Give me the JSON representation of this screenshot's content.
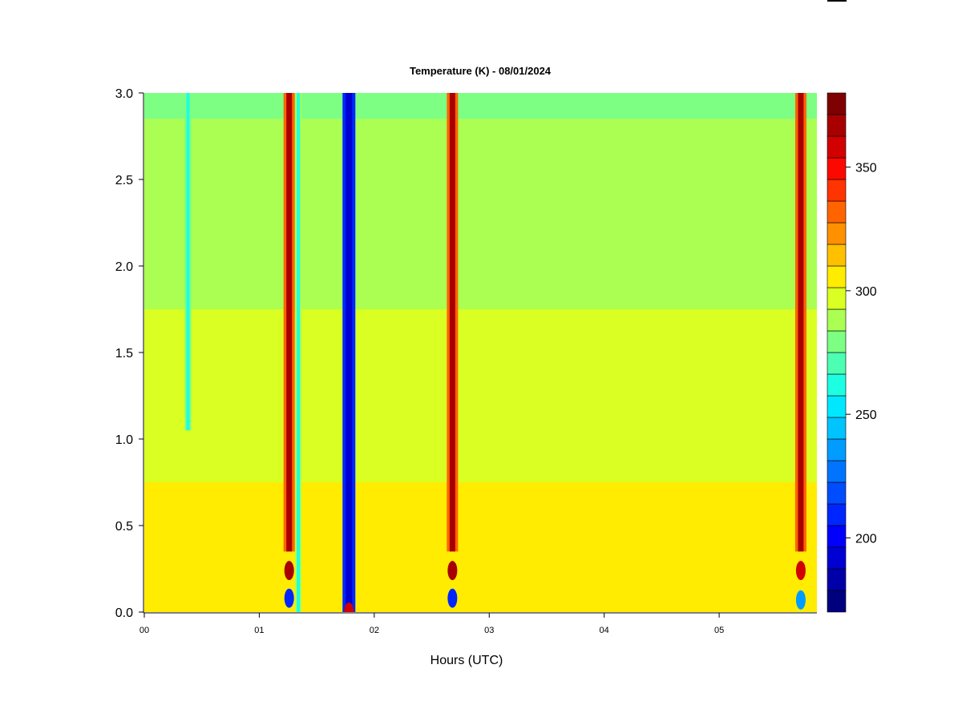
{
  "chart_data": {
    "type": "heatmap",
    "title": "Temperature (K) - 08/01/2024",
    "xlabel": "Hours (UTC)",
    "ylabel": "",
    "xlim": [
      0,
      5.85
    ],
    "ylim": [
      0,
      3.0
    ],
    "x_ticks": [
      0,
      1,
      2,
      3,
      4,
      5
    ],
    "x_tick_labels": [
      "00",
      "01",
      "02",
      "03",
      "04",
      "05"
    ],
    "y_ticks": [
      0.0,
      0.5,
      1.0,
      1.5,
      2.0,
      2.5,
      3.0
    ],
    "y_tick_labels": [
      "0.0",
      "0.5",
      "1.0",
      "1.5",
      "2.0",
      "2.5",
      "3.0"
    ],
    "colorbar": {
      "min": 170,
      "max": 380,
      "ticks": [
        200,
        250,
        300,
        350
      ],
      "tick_labels": [
        "200",
        "250",
        "300",
        "350"
      ],
      "colors": [
        "#00007f",
        "#0000a8",
        "#0000d2",
        "#0000fc",
        "#0026ff",
        "#004cff",
        "#0074ff",
        "#009cff",
        "#00c4ff",
        "#00e8ff",
        "#1cffe2",
        "#4cffb2",
        "#7cff82",
        "#aaff52",
        "#daff22",
        "#ffec00",
        "#ffc000",
        "#ff9000",
        "#ff6400",
        "#ff3400",
        "#fc0800",
        "#d20000",
        "#a80000",
        "#7f0000"
      ]
    },
    "background_layers": [
      {
        "name": "",
        "y_range": [
          0.0,
          0.75
        ],
        "value": 305
      },
      {
        "name": "",
        "y_range": [
          0.75,
          1.75
        ],
        "value": 298
      },
      {
        "name": "",
        "y_range": [
          1.75,
          2.85
        ],
        "value": 290
      },
      {
        "name": "",
        "y_range": [
          2.85,
          3.0
        ],
        "value": 283
      }
    ],
    "vertical_anomalies": [
      {
        "x": 0.38,
        "value": 258,
        "y_range": [
          1.05,
          3.0
        ]
      },
      {
        "x": 1.26,
        "value": 370,
        "y_range": [
          0.35,
          3.0
        ]
      },
      {
        "x": 1.34,
        "value": 262,
        "y_range": [
          0.0,
          3.0
        ]
      },
      {
        "x": 1.78,
        "value": 188,
        "y_range": [
          0.0,
          3.0
        ]
      },
      {
        "x": 2.68,
        "value": 370,
        "y_range": [
          0.35,
          3.0
        ]
      },
      {
        "x": 5.71,
        "value": 370,
        "y_range": [
          0.35,
          3.0
        ]
      }
    ],
    "bottom_blobs": [
      {
        "x": 1.26,
        "y": 0.08,
        "value": 205
      },
      {
        "x": 1.26,
        "y": 0.24,
        "value": 365
      },
      {
        "x": 2.68,
        "y": 0.08,
        "value": 205
      },
      {
        "x": 2.68,
        "y": 0.24,
        "value": 365
      },
      {
        "x": 5.71,
        "y": 0.07,
        "value": 232
      },
      {
        "x": 5.71,
        "y": 0.24,
        "value": 362
      },
      {
        "x": 1.78,
        "y": 0.0,
        "value": 360
      }
    ]
  }
}
